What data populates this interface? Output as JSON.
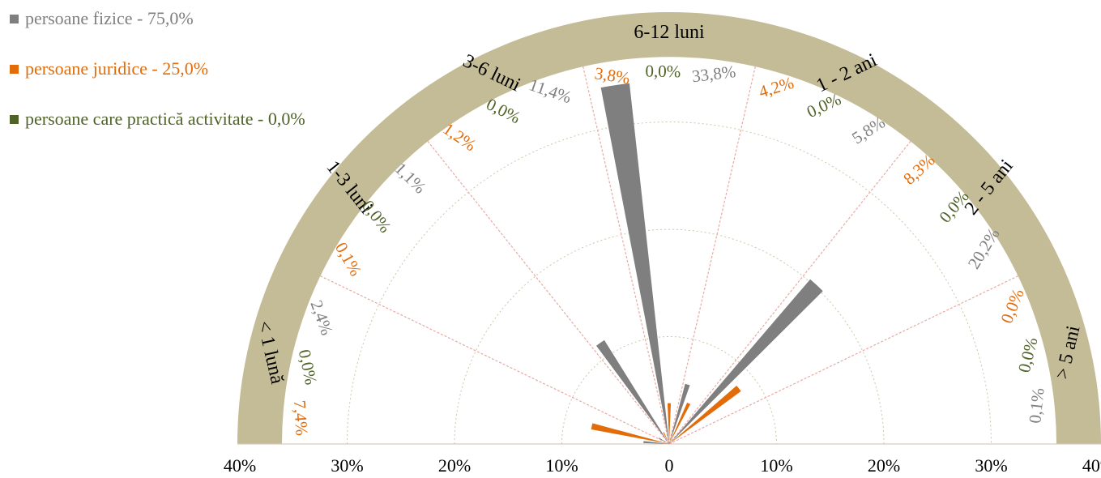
{
  "legend": [
    {
      "label": "persoane fizice - 75,0%",
      "color": "#7f7f7f"
    },
    {
      "label": "persoane juridice - 25,0%",
      "color": "#e36c0a"
    },
    {
      "label": "persoane care practică activitate -  0,0%",
      "color": "#4f6228"
    }
  ],
  "chart_data": {
    "type": "polar-bar",
    "title": "",
    "range": [
      0,
      40
    ],
    "axis_ticks": [
      "40%",
      "30%",
      "20%",
      "10%",
      "0",
      "10%",
      "20%",
      "30%",
      "40%"
    ],
    "grid": true,
    "band_color": "#c4bc96",
    "categories": [
      "< 1 lună",
      "1-3 luni",
      "3-6 luni",
      "6-12 luni",
      "1 - 2 ani",
      "2 - 5 ani",
      "> 5 ani"
    ],
    "series": [
      {
        "name": "persoane fizice",
        "color": "#7f7f7f",
        "values": [
          2.4,
          1.1,
          11.4,
          33.8,
          5.8,
          20.2,
          0.1
        ],
        "labels": [
          "2,4%",
          "1,1%",
          "11,4%",
          "33,8%",
          "5,8%",
          "20,2%",
          "0,1%"
        ]
      },
      {
        "name": "persoane juridice",
        "color": "#e36c0a",
        "values": [
          7.4,
          0.1,
          1.2,
          3.8,
          4.2,
          8.3,
          0.0
        ],
        "labels": [
          "7,4%",
          "0,1%",
          "1,2%",
          "3,8%",
          "4,2%",
          "8,3%",
          "0,0%"
        ]
      },
      {
        "name": "persoane care practică activitate",
        "color": "#4f6228",
        "values": [
          0.0,
          0.0,
          0.0,
          0.0,
          0.0,
          0.0,
          0.0
        ],
        "labels": [
          "0,0%",
          "0,0%",
          "0,0%",
          "0,0%",
          "0,0%",
          "0,0%",
          "0,0%"
        ]
      }
    ]
  }
}
